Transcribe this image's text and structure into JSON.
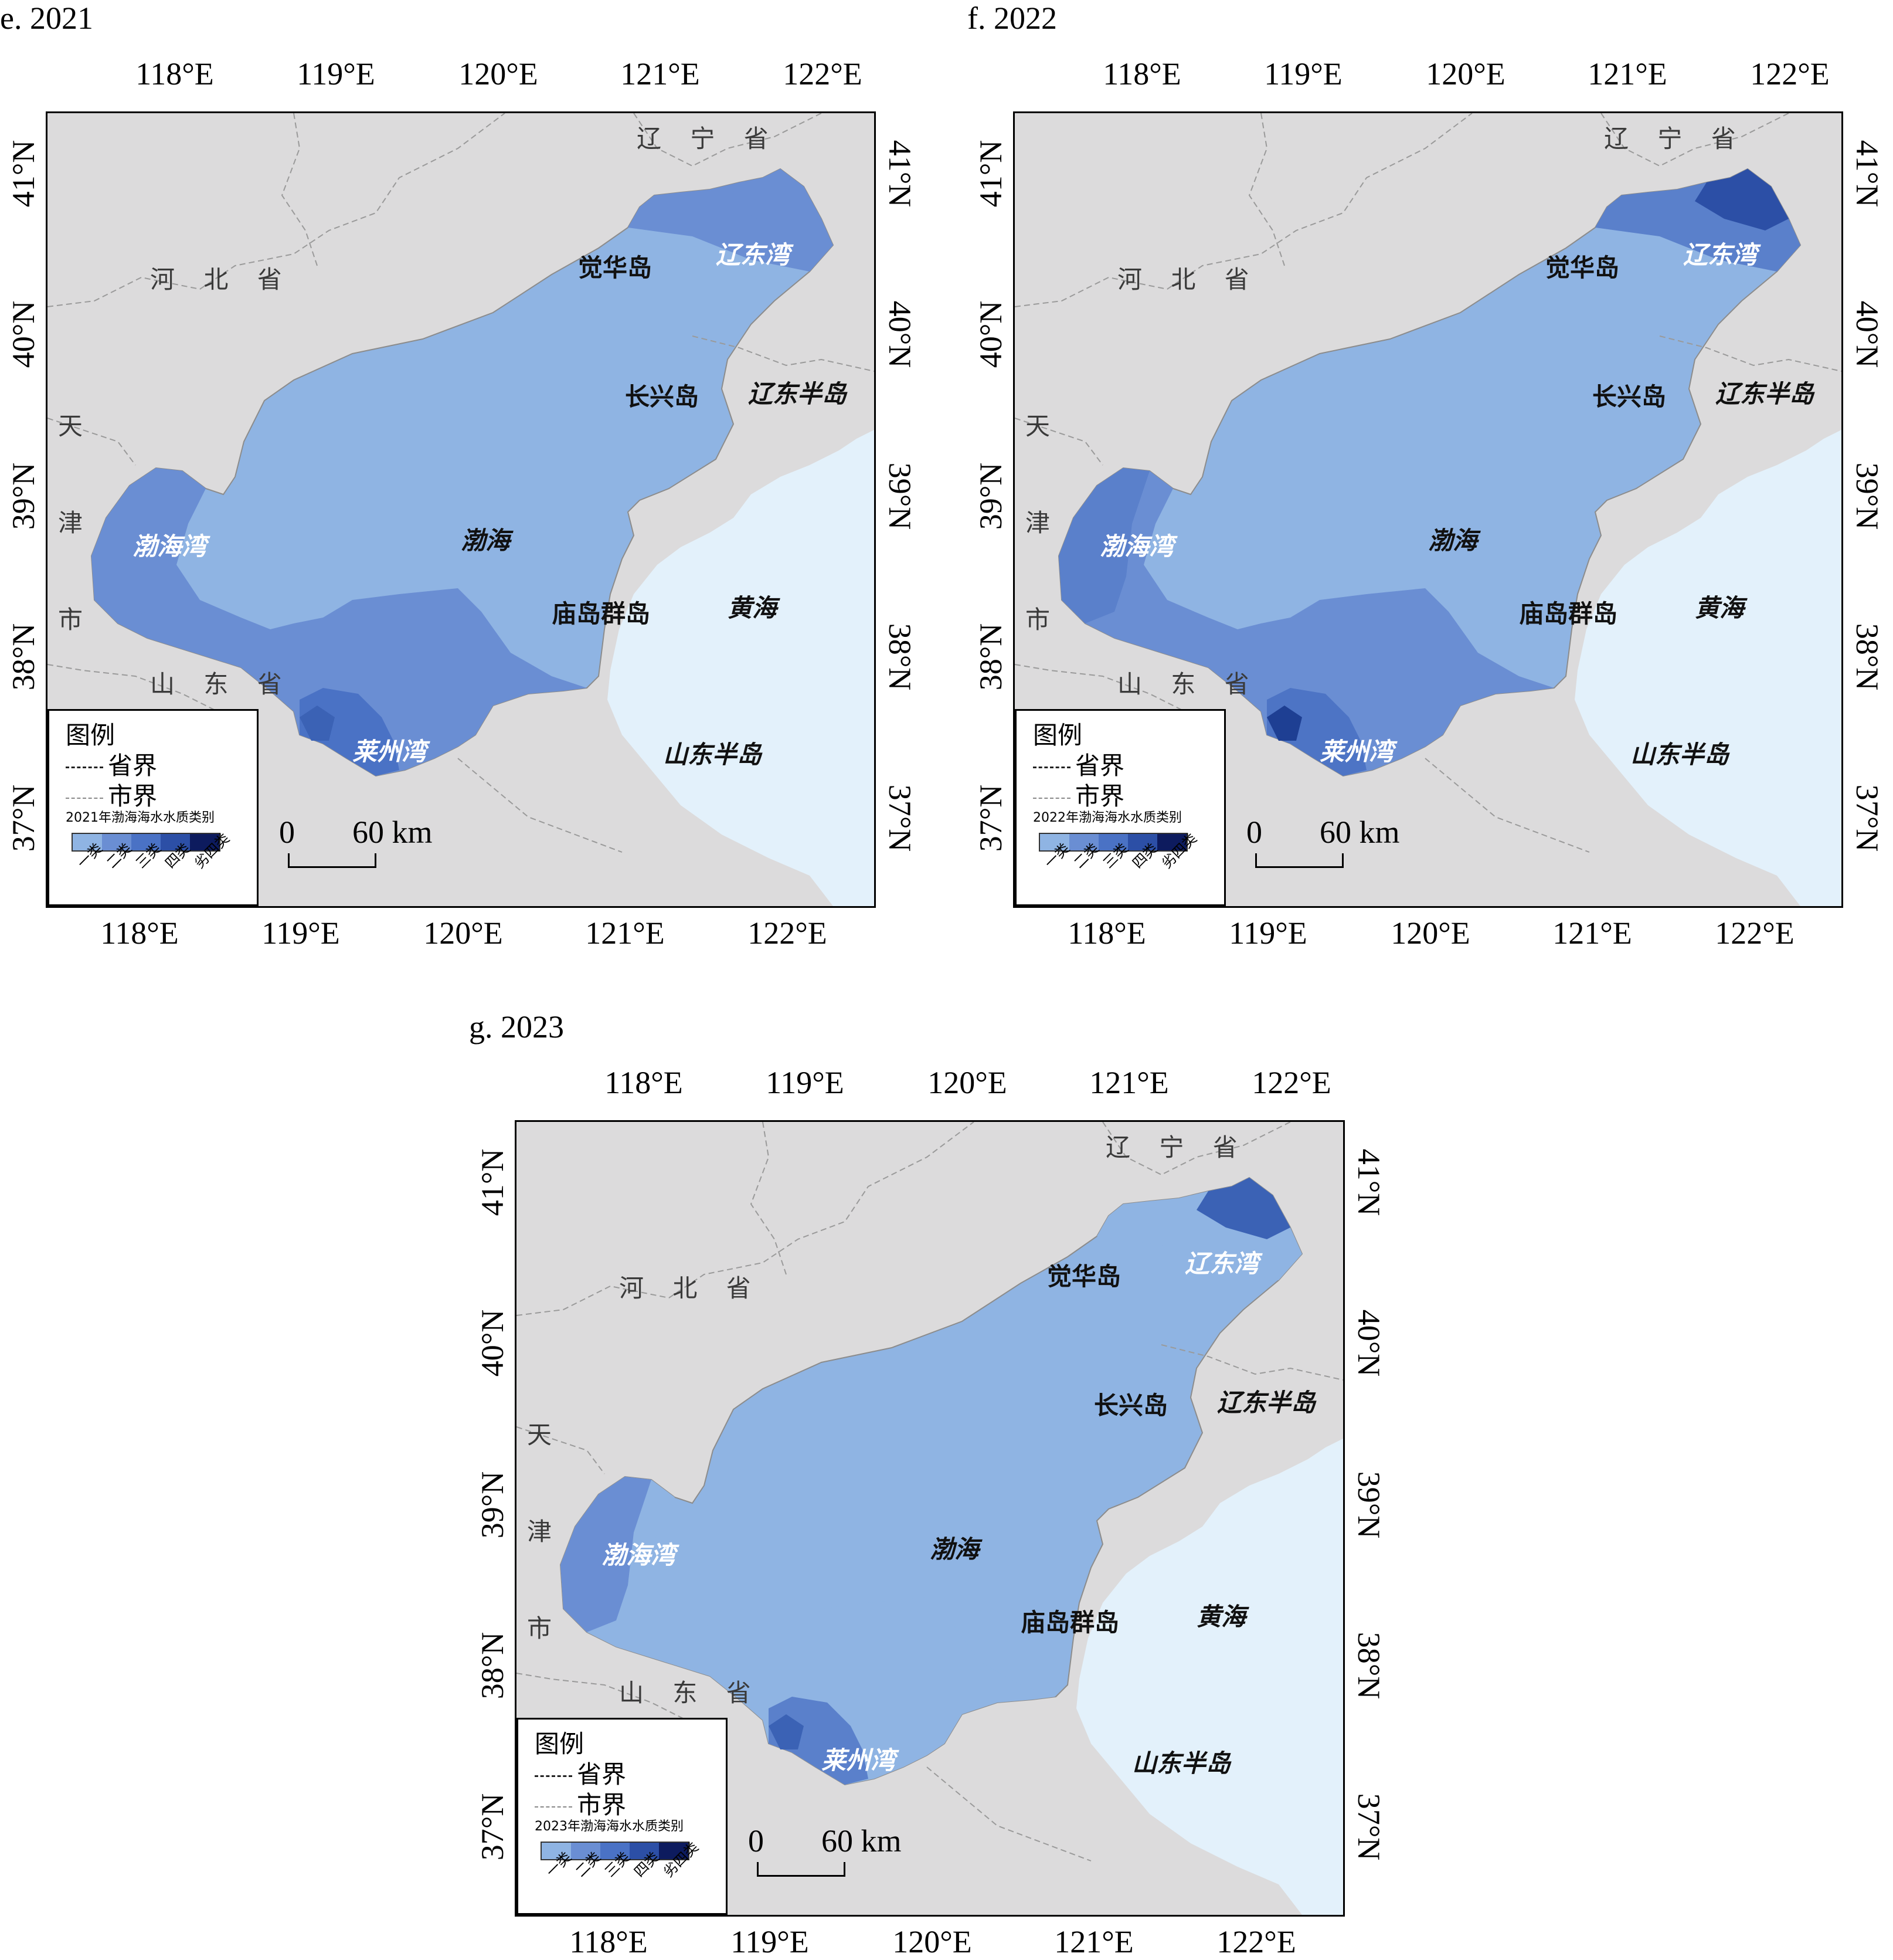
{
  "panels": [
    {
      "title": "e. 2021",
      "legend_sub": "2021年渤海海水水质类别",
      "fills": {
        "bay_w": "#6a8ed3",
        "laizhou": "#4a72c5",
        "laizhou_core": "#3b62b5",
        "liaodong": "#6a8ed3",
        "liaodong_core": "#6a8ed3",
        "central": "#8fb4e3",
        "south": "#6a8ed3"
      }
    },
    {
      "title": "f. 2022",
      "legend_sub": "2022年渤海海水水质类别",
      "fills": {
        "bay_w": "#5a80cb",
        "laizhou": "#4d74c5",
        "laizhou_core": "#1e3f93",
        "liaodong": "#5a80cb",
        "liaodong_core": "#2c4fa6",
        "central": "#8fb4e3",
        "south": "#6a8ed3"
      }
    },
    {
      "title": "g. 2023",
      "legend_sub": "2023年渤海海水水质类别",
      "fills": {
        "bay_w": "#6a8ed3",
        "laizhou": "#5a80cb",
        "laizhou_core": "#3b62b5",
        "liaodong": "#8fb4e3",
        "liaodong_core": "#3b62b5",
        "central": "#8fb4e3",
        "south": "#8fb4e3"
      }
    }
  ],
  "axes": {
    "lon_labels": [
      "118°E",
      "119°E",
      "120°E",
      "121°E",
      "122°E"
    ],
    "lat_labels": [
      "41°N",
      "40°N",
      "39°N",
      "38°N",
      "37°N"
    ]
  },
  "places": {
    "liaoning": "辽 宁 省",
    "hebei": "河 北 省",
    "shandong": "山 东 省",
    "tian": "天",
    "jin": "津",
    "shi": "市",
    "juehua": "觉华岛",
    "changxing": "长兴岛",
    "liaodong_pen": "辽东半岛",
    "liaodong_bay": "辽东湾",
    "bohai_bay": "渤海湾",
    "bohai": "渤海",
    "miaodao": "庙岛群岛",
    "huanghai": "黄海",
    "laizhou_bay": "莱州湾",
    "shandong_pen": "山东半岛"
  },
  "legend": {
    "title": "图例",
    "province_border": "省界",
    "city_border": "市界",
    "classes": [
      "一类",
      "二类",
      "三类",
      "四类",
      "劣四类"
    ],
    "class_colors": [
      "#8fb4e3",
      "#6a8ed3",
      "#4a72c5",
      "#2c4fa6",
      "#0d1b5e"
    ]
  },
  "scale": {
    "zero": "0",
    "value": "60 km"
  },
  "colors": {
    "land": "#dcdbdc",
    "yellow_sea": "#e3f1fb",
    "border": "#9a9a9a"
  }
}
